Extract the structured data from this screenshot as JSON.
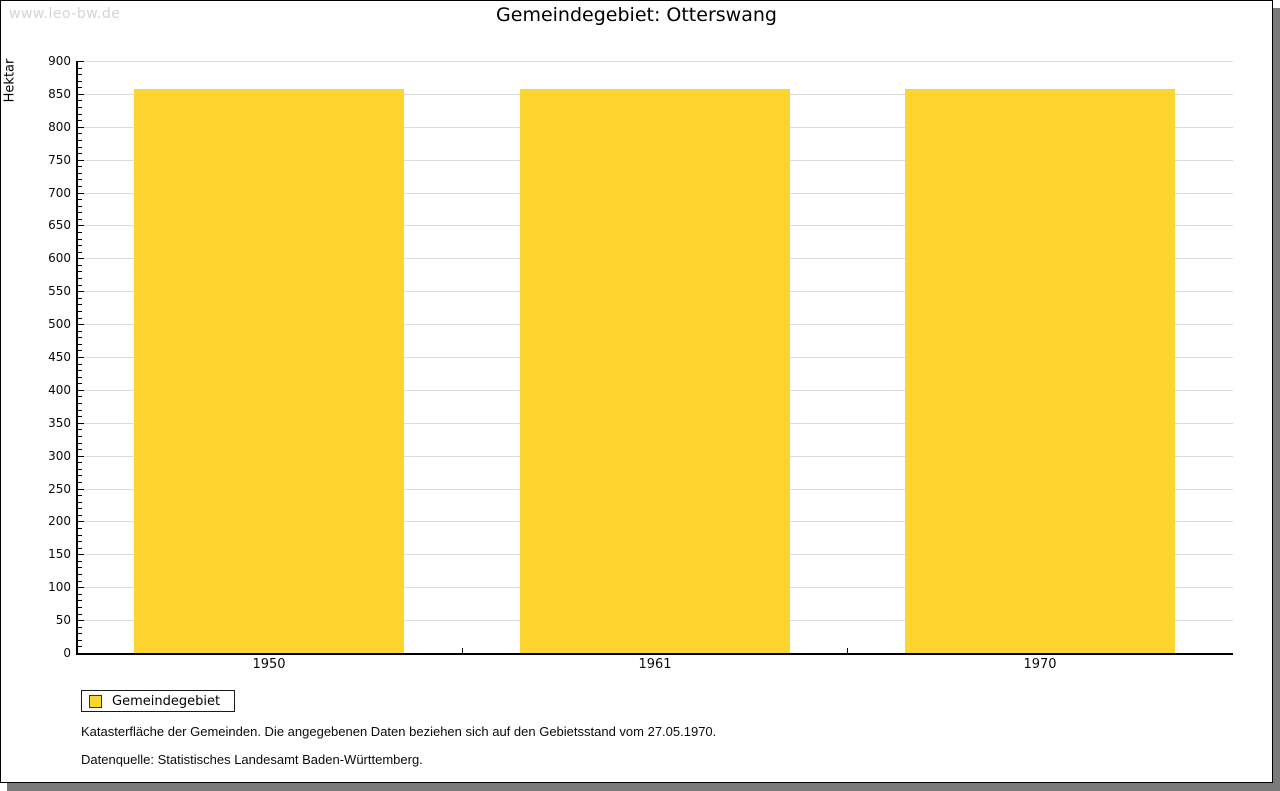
{
  "watermark": "www.leo-bw.de",
  "title": "Gemeindegebiet: Otterswang",
  "chart_data": {
    "type": "bar",
    "title": "Gemeindegebiet: Otterswang",
    "categories": [
      "1950",
      "1961",
      "1970"
    ],
    "series": [
      {
        "name": "Gemeindegebiet",
        "values": [
          857,
          857,
          857
        ]
      }
    ],
    "xlabel": "",
    "ylabel": "Hektar",
    "ylim": [
      0,
      900
    ],
    "ytick_step": 50,
    "ytick_minor_step": 10,
    "grid": "horizontal",
    "legend_position": "bottom-left",
    "bar_color": "#fdd52e"
  },
  "legend": {
    "items": [
      {
        "label": "Gemeindegebiet",
        "color": "#fdd52e"
      }
    ]
  },
  "footnotes": [
    "Katasterfläche der Gemeinden. Die angegebenen Daten beziehen sich auf den Gebietsstand vom 27.05.1970.",
    "Datenquelle: Statistisches Landesamt Baden-Württemberg."
  ],
  "colors": {
    "bar": "#fdd52e",
    "grid": "#dcdcdc",
    "axis": "#000000",
    "watermark": "#d5d5d5",
    "shadow": "#7a7a7a"
  }
}
